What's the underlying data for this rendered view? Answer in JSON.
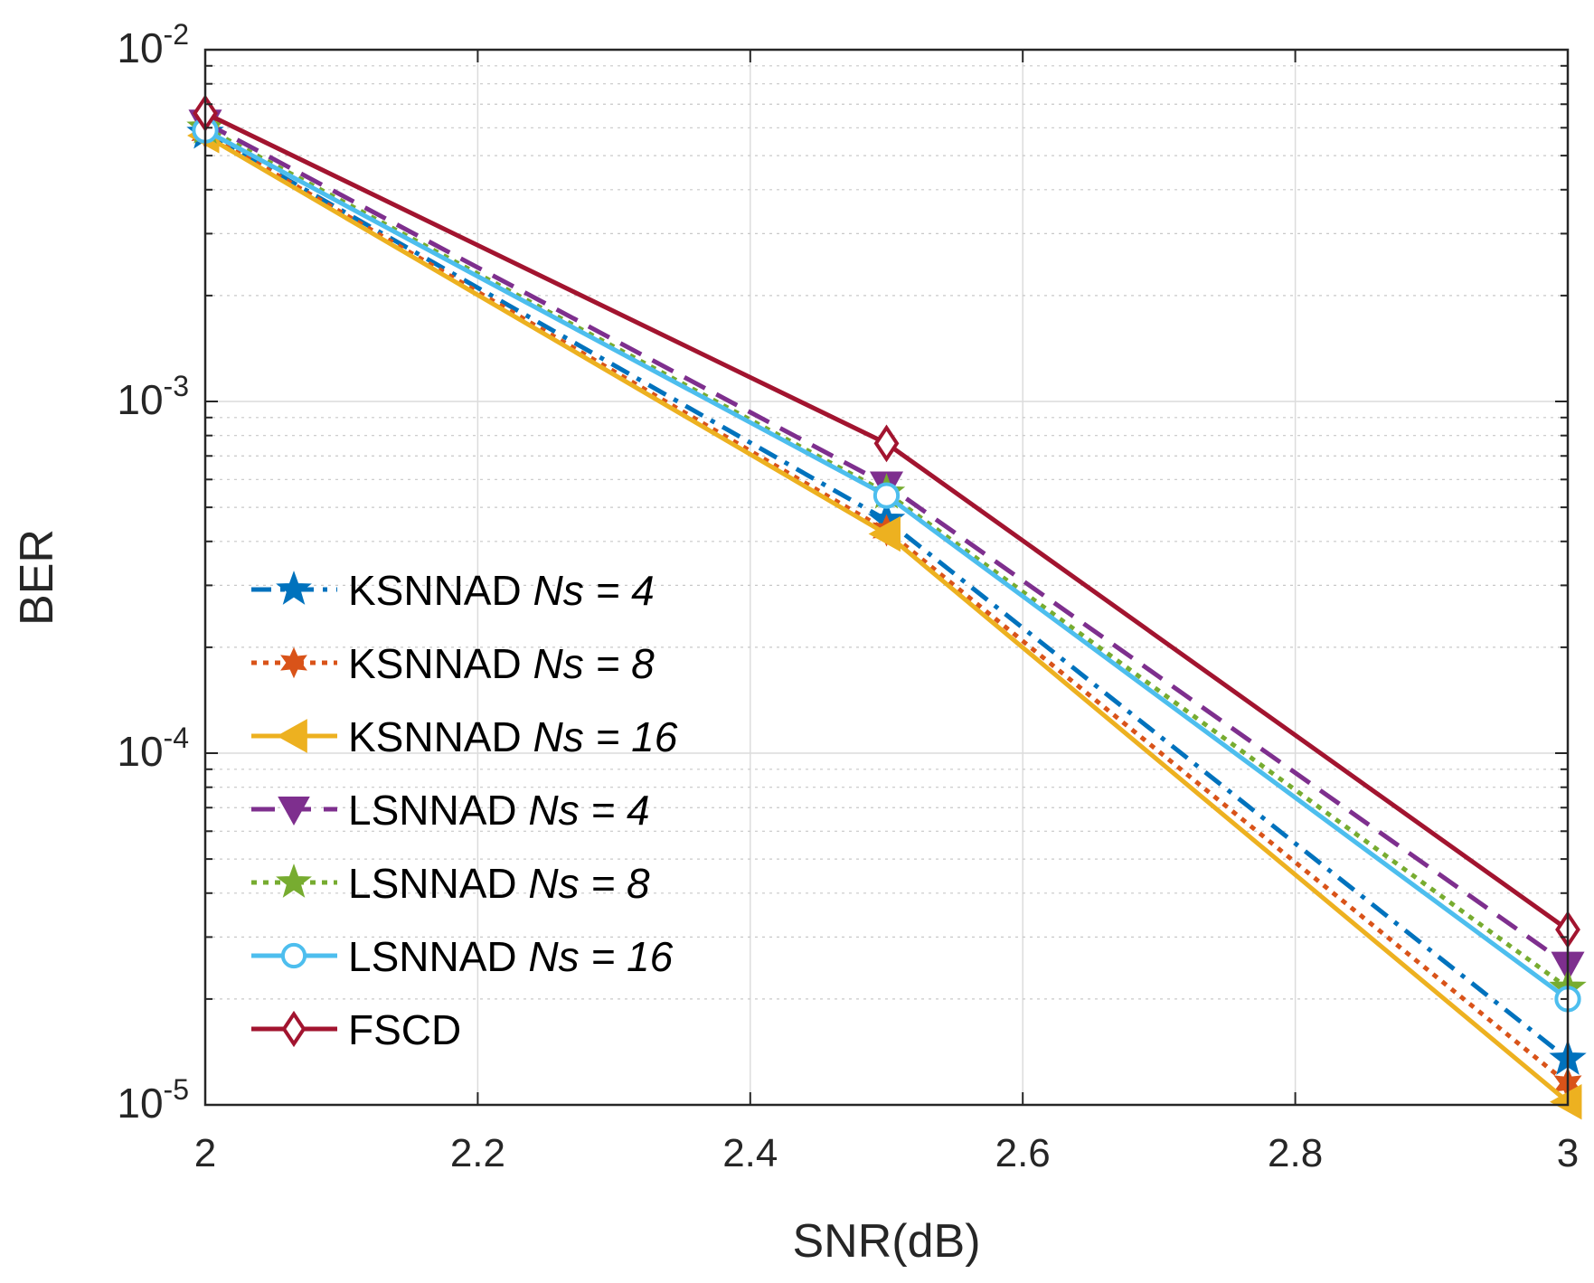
{
  "chart_data": {
    "type": "line",
    "xlabel": "SNR(dB)",
    "ylabel": "BER",
    "xscale": "linear",
    "yscale": "log",
    "xlim": [
      2,
      3
    ],
    "ylim": [
      1e-05,
      0.01
    ],
    "grid": true,
    "legend_position": "bottom-left",
    "x": [
      2,
      2.5,
      3
    ],
    "x_ticks": [
      {
        "value": 2,
        "label": "2"
      },
      {
        "value": 2.2,
        "label": "2.2"
      },
      {
        "value": 2.4,
        "label": "2.4"
      },
      {
        "value": 2.6,
        "label": "2.6"
      },
      {
        "value": 2.8,
        "label": "2.8"
      },
      {
        "value": 3,
        "label": "3"
      }
    ],
    "y_ticks": [
      {
        "value": 0.01,
        "base": "10",
        "exp": "-2"
      },
      {
        "value": 0.001,
        "base": "10",
        "exp": "-3"
      },
      {
        "value": 0.0001,
        "base": "10",
        "exp": "-4"
      },
      {
        "value": 1e-05,
        "base": "10",
        "exp": "-5"
      }
    ],
    "series": [
      {
        "name": "KSNNAD",
        "sub": "Ns = 4",
        "values": [
          0.0058,
          0.00046,
          1.35e-05
        ],
        "color": "#0072BD",
        "dash": "dashdot",
        "marker": "star5"
      },
      {
        "name": "KSNNAD",
        "sub": "Ns = 8",
        "values": [
          0.0058,
          0.00043,
          1.15e-05
        ],
        "color": "#D95319",
        "dash": "dotted",
        "marker": "star6"
      },
      {
        "name": "KSNNAD",
        "sub": "Ns = 16",
        "values": [
          0.0057,
          0.00042,
          1.02e-05
        ],
        "color": "#EDB120",
        "dash": "solid",
        "marker": "triangle-left"
      },
      {
        "name": "LSNNAD",
        "sub": "Ns = 4",
        "values": [
          0.0062,
          0.00058,
          2.5e-05
        ],
        "color": "#7E2F8E",
        "dash": "dashed",
        "marker": "triangle-down"
      },
      {
        "name": "LSNNAD",
        "sub": "Ns = 8",
        "values": [
          0.006,
          0.00055,
          2.15e-05
        ],
        "color": "#77AC30",
        "dash": "dotted",
        "marker": "star5"
      },
      {
        "name": "LSNNAD",
        "sub": "Ns = 16",
        "values": [
          0.0059,
          0.00054,
          2e-05
        ],
        "color": "#4DBEEE",
        "dash": "solid",
        "marker": "circle"
      },
      {
        "name": "FSCD",
        "sub": "",
        "values": [
          0.0066,
          0.00076,
          3.15e-05
        ],
        "color": "#A2142F",
        "dash": "solid",
        "marker": "diamond"
      }
    ]
  }
}
